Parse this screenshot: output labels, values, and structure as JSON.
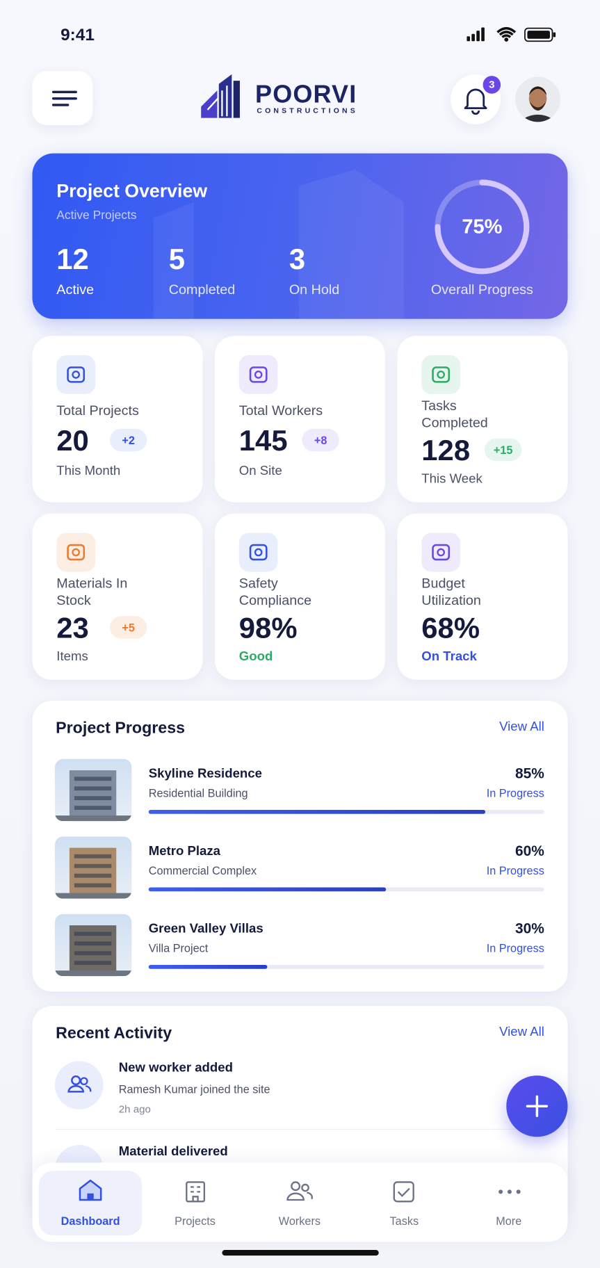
{
  "status_bar": {
    "time": "9:41"
  },
  "header": {
    "brand": "POORVI",
    "tagline": "CONSTRUCTIONS",
    "notifications": "3"
  },
  "overview": {
    "title": "Project Overview",
    "subtitle": "Active Projects",
    "stats": [
      {
        "value": "12",
        "label": "Active"
      },
      {
        "value": "5",
        "label": "Completed"
      },
      {
        "value": "3",
        "label": "On Hold"
      }
    ],
    "progress": "75%",
    "progress_label": "Overall Progress"
  },
  "cards": [
    {
      "title": "Total Projects",
      "value": "20",
      "badge": "+2",
      "note": "This Month"
    },
    {
      "title": "Total Workers",
      "value": "145",
      "badge": "+8",
      "note": "On Site"
    },
    {
      "title": "Tasks Completed",
      "value": "128",
      "badge": "+15",
      "note": "This Week"
    },
    {
      "title": "Materials In Stock",
      "value": "23",
      "badge": "+5",
      "note": "Items"
    },
    {
      "title": "Safety Compliance",
      "value": "98%",
      "note": "Good"
    },
    {
      "title": "Budget Utilization",
      "value": "68%",
      "note": "On Track"
    }
  ],
  "project_progress": {
    "title": "Project Progress",
    "link": "View All",
    "projects": [
      {
        "name": "Skyline Residence",
        "type": "Residential Building",
        "percent": "85%",
        "status": "In Progress"
      },
      {
        "name": "Metro Plaza",
        "type": "Commercial Complex",
        "percent": "60%",
        "status": "In Progress"
      },
      {
        "name": "Green Valley Villas",
        "type": "Villa Project",
        "percent": "30%",
        "status": "In Progress"
      }
    ]
  },
  "recent_activity": {
    "title": "Recent Activity",
    "link": "View All",
    "items": [
      {
        "title": "New worker added",
        "detail": "Ramesh Kumar joined the site",
        "time": "2h ago"
      },
      {
        "title": "Material delivered"
      }
    ]
  },
  "nav": [
    "Dashboard",
    "Projects",
    "Workers",
    "Tasks",
    "More"
  ]
}
